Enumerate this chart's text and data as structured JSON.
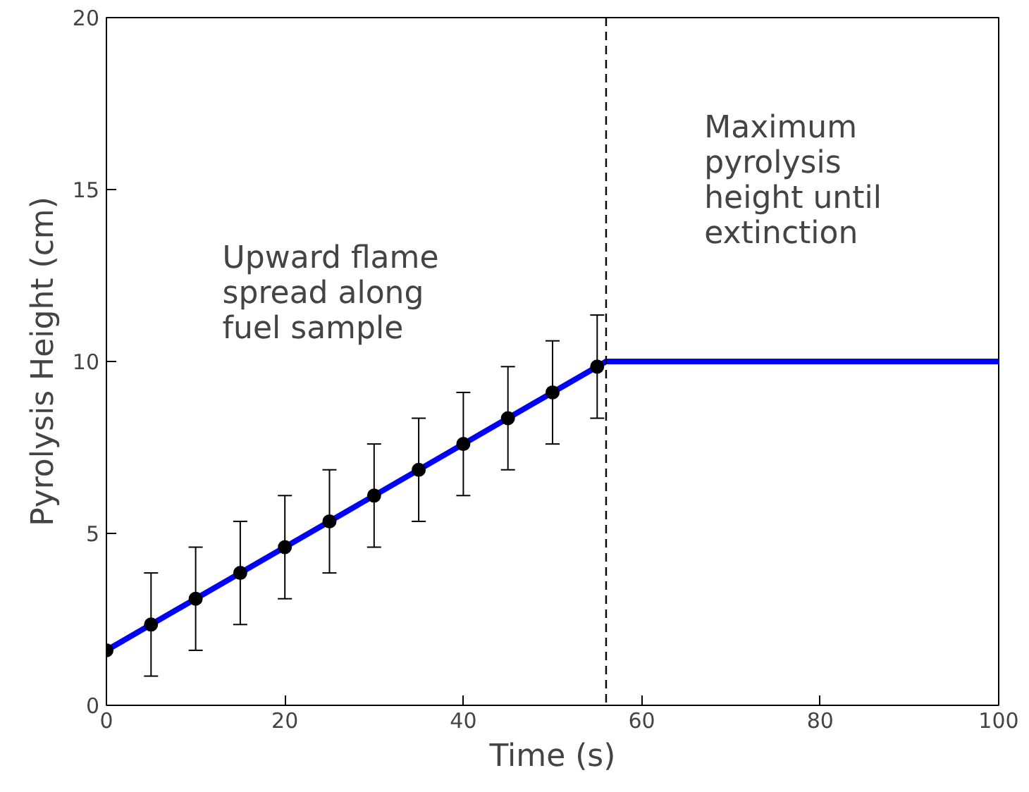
{
  "chart_data": {
    "type": "line",
    "xlabel": "Time (s)",
    "ylabel": "Pyrolysis Height (cm)",
    "xlim": [
      0,
      100
    ],
    "ylim": [
      0,
      20
    ],
    "xticks": [
      0,
      20,
      40,
      60,
      80,
      100
    ],
    "yticks": [
      0,
      5,
      10,
      15,
      20
    ],
    "grid": false,
    "series": [
      {
        "color": "#0000ff",
        "x": [
          0,
          56,
          100
        ],
        "values": [
          1.6,
          10,
          10
        ],
        "marker": "none"
      },
      {
        "type": "scatter",
        "color": "#000000",
        "marker": "circle",
        "x": [
          0,
          5,
          10,
          15,
          20,
          25,
          30,
          35,
          40,
          45,
          50,
          55
        ],
        "values": [
          1.6,
          2.35,
          3.1,
          3.85,
          4.6,
          5.35,
          6.1,
          6.85,
          7.6,
          8.35,
          9.1,
          9.85
        ],
        "errors": [
          null,
          1.5,
          1.5,
          1.5,
          1.5,
          1.5,
          1.5,
          1.5,
          1.5,
          1.5,
          1.5,
          1.5
        ]
      }
    ],
    "ref_lines": [
      {
        "axis": "x",
        "value": 56,
        "color": "#000000",
        "line_style": "dashed"
      }
    ],
    "annotations": [
      "Upward flame\nspread along\nfuel sample",
      "Maximum\npyrolysis\nheight until\nextinction"
    ]
  }
}
